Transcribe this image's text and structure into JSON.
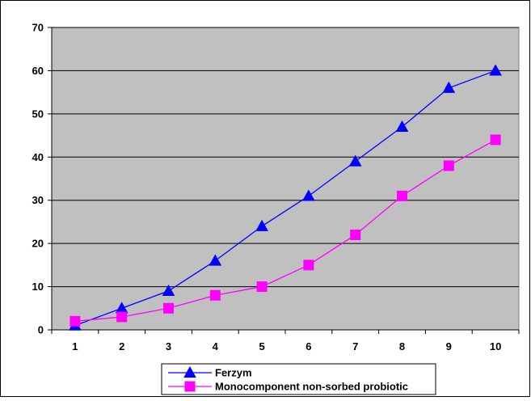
{
  "chart_data": {
    "type": "line",
    "categories": [
      "1",
      "2",
      "3",
      "4",
      "5",
      "6",
      "7",
      "8",
      "9",
      "10"
    ],
    "series": [
      {
        "name": "Ferzym",
        "values": [
          1,
          5,
          9,
          16,
          24,
          31,
          39,
          47,
          56,
          60
        ],
        "color": "#0000ff",
        "marker": "triangle"
      },
      {
        "name": "Monocomponent non-sorbed probiotic",
        "values": [
          2,
          3,
          5,
          8,
          10,
          15,
          22,
          31,
          38,
          44
        ],
        "color": "#ff00ff",
        "marker": "square"
      }
    ],
    "ylim": [
      0,
      70
    ],
    "yticks": [
      0,
      10,
      20,
      30,
      40,
      50,
      60,
      70
    ],
    "grid": true,
    "plot_background": "#c0c0c0",
    "legend_position": "bottom"
  }
}
